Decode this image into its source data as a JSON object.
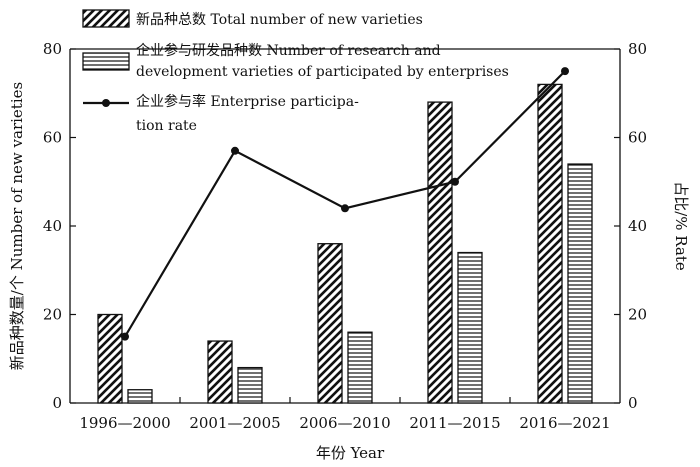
{
  "chart_data": {
    "type": "bar",
    "categories": [
      "1996—2000",
      "2001—2005",
      "2006—2010",
      "2011—2015",
      "2016—2021"
    ],
    "series": [
      {
        "name": "新品种总数 Total number of new varieties",
        "kind": "bar",
        "pattern": "diagonal-hatch",
        "axis": "left",
        "values": [
          20,
          14,
          36,
          68,
          72
        ]
      },
      {
        "name": "企业参与研发品种数 Number of research and development varieties of participated by enterprises",
        "legend_lines": [
          "企业参与研发品种数 Number of research and",
          "development varieties of participated by enterprises"
        ],
        "kind": "bar",
        "pattern": "horizontal-stripes",
        "axis": "left",
        "values": [
          3,
          8,
          16,
          34,
          54
        ]
      },
      {
        "name": "企业参与率 Enterprise participation rate",
        "legend_lines": [
          "企业参与率 Enterprise participa-",
          "tion rate"
        ],
        "kind": "line",
        "marker": "dot",
        "axis": "right",
        "values": [
          15,
          57,
          44,
          50,
          75
        ]
      }
    ],
    "xlabel": "年份 Year",
    "ylabel": "新品种数量/个 Number of new varieties",
    "ylabel_right": "占比/% Rate",
    "ylim": [
      0,
      80
    ],
    "ylim_right": [
      0,
      80
    ],
    "yticks": [
      0,
      20,
      40,
      60,
      80
    ],
    "yticks_right": [
      0,
      20,
      40,
      60,
      80
    ],
    "grid": false,
    "legend_position": "top-left"
  }
}
